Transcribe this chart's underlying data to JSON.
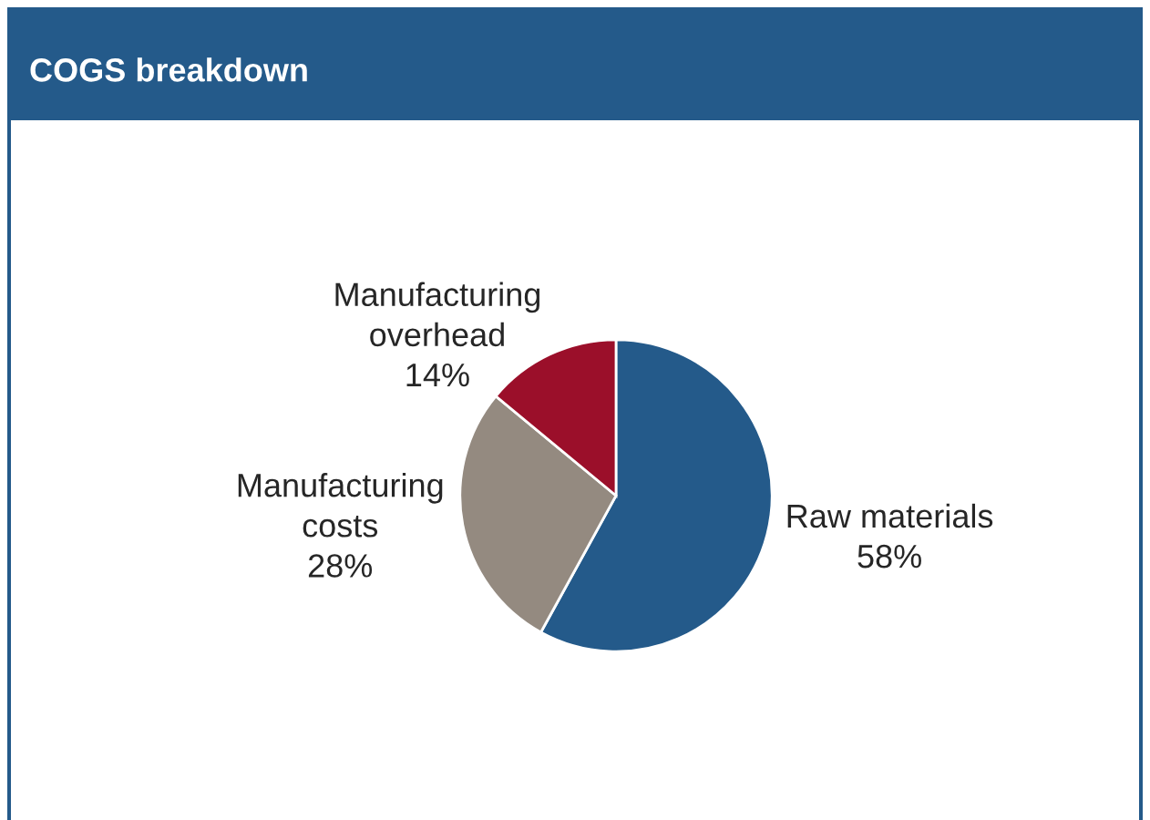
{
  "chart_data": {
    "type": "pie",
    "title": "COGS breakdown",
    "categories": [
      "Raw materials",
      "Manufacturing costs",
      "Manufacturing overhead"
    ],
    "values": [
      58,
      28,
      14
    ],
    "colors": [
      "#245a8a",
      "#948a80",
      "#9b0f2a"
    ],
    "value_labels": [
      "58%",
      "28%",
      "14%"
    ],
    "legend": false
  }
}
